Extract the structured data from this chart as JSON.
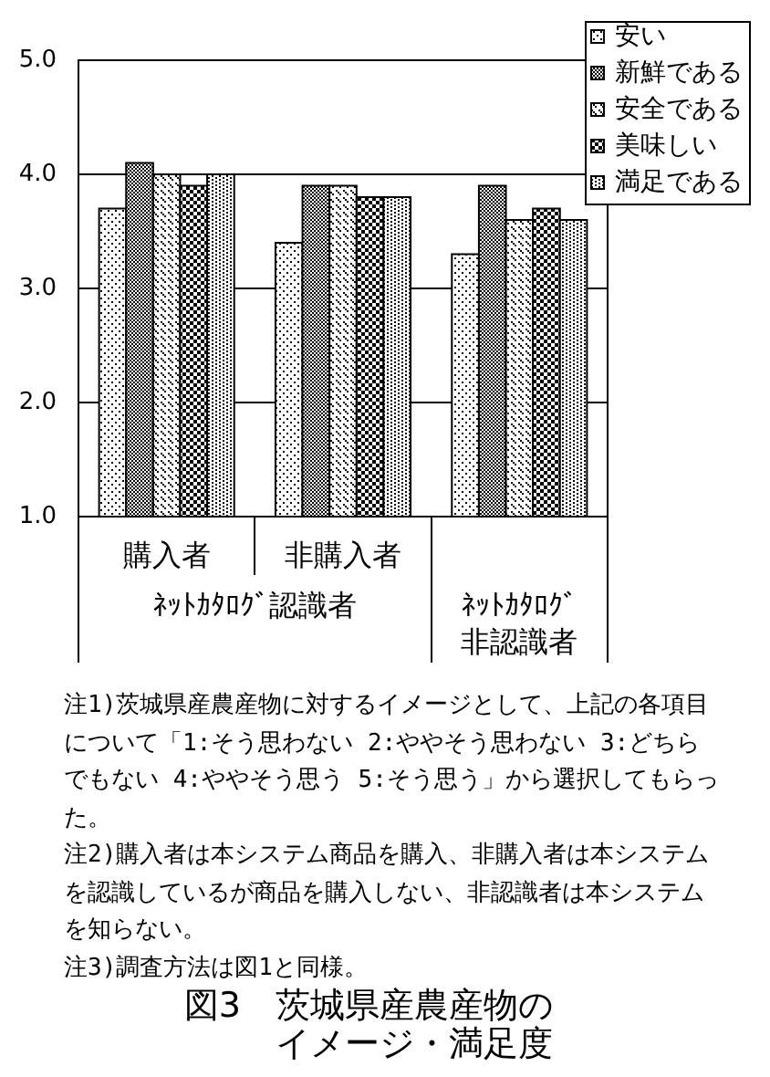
{
  "chart_data": {
    "type": "bar",
    "title": "図3　茨城県産農産物のイメージ・満足度",
    "categories": [
      "購入者",
      "非購入者",
      null
    ],
    "series": [
      {
        "name": "安い",
        "color": "#000000",
        "values": [
          3.7,
          3.4,
          3.3
        ]
      },
      {
        "name": "新鮮である",
        "color": "#000000",
        "values": [
          4.1,
          3.9,
          3.9
        ]
      },
      {
        "name": "安全である",
        "color": "#000000",
        "values": [
          4.0,
          3.9,
          3.6
        ]
      },
      {
        "name": "美味しい",
        "color": "#000000",
        "values": [
          3.9,
          3.8,
          3.7
        ]
      },
      {
        "name": "満足である",
        "color": "#000000",
        "values": [
          4.0,
          3.8,
          3.6
        ]
      }
    ],
    "ylim": [
      1,
      5
    ],
    "yticks": [
      {
        "value": 1,
        "label": "1.0"
      },
      {
        "value": 2,
        "label": "2.0"
      },
      {
        "value": 3,
        "label": "3.0"
      },
      {
        "value": 4,
        "label": "4.0"
      },
      {
        "value": 5,
        "label": "5.0"
      }
    ],
    "grid": "y",
    "legend": "top right",
    "annotations": [
      "ﾈｯﾄｶﾀﾛｸﾞ認識者",
      "ﾈｯﾄｶﾀﾛｸﾞ非認識者",
      "注1)茨城県産農産物に対するイメージとして、上記の各項目について「1:そう思わない 2:ややそう思わない 3:どちらでもない 4:ややそう思う 5:そう思う」から選択してもらった。",
      "注2)購入者は本システム商品を購入、非購入者は本システムを認識しているが商品を購入しない、非認識者は本システムを知らない。",
      "注3)調査方法は図1と同様。"
    ]
  }
}
